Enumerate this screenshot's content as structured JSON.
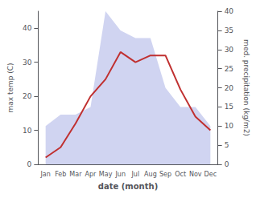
{
  "chart_data": {
    "type": "line",
    "xlabel": "date (month)",
    "ylabel": "max temp (C)",
    "y2label": "med. precipitation (kg/m2)",
    "categories": [
      "Jan",
      "Feb",
      "Mar",
      "Apr",
      "May",
      "Jun",
      "Jul",
      "Aug",
      "Sep",
      "Oct",
      "Nov",
      "Dec"
    ],
    "series": [
      {
        "type": "area",
        "color": "#b0b8e8",
        "axis": "y2",
        "values": [
          10,
          13,
          13,
          15,
          40,
          35,
          33,
          33,
          20,
          15,
          15,
          10
        ]
      },
      {
        "type": "line",
        "color": "#c03030",
        "values": [
          2,
          5,
          12,
          20,
          25,
          33,
          30,
          32,
          32,
          22,
          14,
          10
        ]
      }
    ],
    "ylim": [
      0,
      45
    ],
    "yticks": [
      0,
      10,
      20,
      30,
      40
    ],
    "y2lim": [
      0,
      40
    ],
    "y2ticks": [
      0,
      5,
      10,
      15,
      20,
      25,
      30,
      35,
      40
    ],
    "grid": false
  }
}
